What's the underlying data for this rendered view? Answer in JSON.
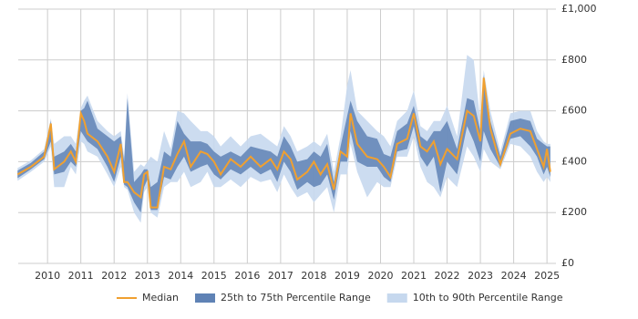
{
  "chart_data": {
    "type": "band-line",
    "x": [
      2009.1,
      2009.5,
      2009.9,
      2010.1,
      2010.2,
      2010.5,
      2010.7,
      2010.85,
      2011.0,
      2011.1,
      2011.2,
      2011.5,
      2011.8,
      2012.0,
      2012.2,
      2012.3,
      2012.4,
      2012.6,
      2012.8,
      2012.9,
      2013.0,
      2013.1,
      2013.3,
      2013.5,
      2013.7,
      2013.9,
      2014.1,
      2014.3,
      2014.6,
      2014.8,
      2015.0,
      2015.2,
      2015.5,
      2015.8,
      2016.1,
      2016.4,
      2016.7,
      2016.9,
      2017.1,
      2017.3,
      2017.5,
      2017.8,
      2018.0,
      2018.2,
      2018.4,
      2018.6,
      2018.8,
      2019.0,
      2019.1,
      2019.3,
      2019.6,
      2019.9,
      2020.1,
      2020.3,
      2020.5,
      2020.8,
      2021.0,
      2021.2,
      2021.4,
      2021.6,
      2021.8,
      2022.0,
      2022.3,
      2022.6,
      2022.8,
      2023.0,
      2023.1,
      2023.3,
      2023.6,
      2023.9,
      2024.2,
      2024.5,
      2024.7,
      2024.9,
      2025.0,
      2025.1
    ],
    "series": [
      {
        "name": "Median",
        "color": "#f0a030",
        "values": [
          350,
          380,
          420,
          550,
          370,
          400,
          440,
          400,
          590,
          560,
          510,
          480,
          420,
          360,
          470,
          320,
          320,
          280,
          260,
          350,
          360,
          220,
          220,
          380,
          370,
          430,
          480,
          380,
          440,
          430,
          400,
          350,
          410,
          380,
          420,
          380,
          410,
          370,
          440,
          410,
          330,
          360,
          400,
          350,
          390,
          290,
          440,
          420,
          590,
          470,
          420,
          410,
          380,
          340,
          470,
          490,
          590,
          460,
          440,
          480,
          390,
          450,
          410,
          600,
          580,
          480,
          730,
          530,
          390,
          510,
          530,
          520,
          450,
          380,
          450,
          360
        ]
      }
    ],
    "bands": [
      {
        "name": "10th to 90th Percentile Range",
        "color": "#c6d8ee",
        "lower": [
          325,
          360,
          400,
          460,
          300,
          300,
          380,
          350,
          480,
          470,
          440,
          420,
          350,
          300,
          380,
          300,
          290,
          200,
          160,
          280,
          300,
          200,
          180,
          300,
          320,
          320,
          360,
          300,
          320,
          360,
          300,
          300,
          330,
          300,
          340,
          320,
          330,
          280,
          350,
          300,
          260,
          280,
          240,
          270,
          300,
          200,
          350,
          350,
          470,
          360,
          260,
          320,
          300,
          300,
          420,
          420,
          500,
          380,
          320,
          300,
          260,
          340,
          300,
          460,
          420,
          360,
          450,
          400,
          370,
          470,
          460,
          420,
          360,
          320,
          340,
          320
        ],
        "upper": [
          375,
          405,
          450,
          570,
          470,
          500,
          500,
          470,
          610,
          640,
          660,
          560,
          520,
          500,
          520,
          420,
          670,
          360,
          390,
          380,
          400,
          420,
          400,
          520,
          450,
          600,
          590,
          560,
          520,
          520,
          500,
          460,
          500,
          460,
          500,
          510,
          480,
          460,
          540,
          500,
          440,
          460,
          480,
          460,
          510,
          360,
          500,
          700,
          760,
          600,
          560,
          520,
          500,
          460,
          560,
          600,
          680,
          540,
          520,
          560,
          560,
          620,
          500,
          820,
          800,
          560,
          760,
          600,
          440,
          590,
          600,
          600,
          520,
          480,
          470,
          470
        ]
      },
      {
        "name": "25th to 75th Percentile Range",
        "color": "#5f82b5",
        "lower": [
          335,
          370,
          410,
          480,
          350,
          360,
          400,
          380,
          520,
          500,
          480,
          450,
          380,
          320,
          420,
          310,
          300,
          240,
          200,
          300,
          330,
          210,
          210,
          340,
          330,
          380,
          420,
          360,
          380,
          390,
          350,
          330,
          370,
          350,
          380,
          350,
          370,
          320,
          400,
          360,
          290,
          320,
          300,
          310,
          350,
          250,
          400,
          400,
          520,
          400,
          380,
          380,
          340,
          320,
          440,
          450,
          540,
          420,
          380,
          420,
          280,
          400,
          350,
          540,
          480,
          400,
          520,
          450,
          380,
          490,
          500,
          460,
          420,
          350,
          380,
          340
        ],
        "upper": [
          365,
          395,
          440,
          560,
          420,
          440,
          470,
          440,
          600,
          610,
          640,
          530,
          500,
          480,
          500,
          400,
          650,
          320,
          350,
          370,
          370,
          300,
          320,
          440,
          420,
          560,
          510,
          480,
          480,
          470,
          440,
          420,
          440,
          420,
          460,
          450,
          440,
          420,
          500,
          460,
          400,
          410,
          440,
          420,
          470,
          320,
          460,
          580,
          640,
          560,
          500,
          490,
          430,
          420,
          520,
          550,
          620,
          500,
          480,
          520,
          520,
          560,
          450,
          650,
          640,
          520,
          740,
          560,
          420,
          560,
          570,
          560,
          490,
          470,
          460,
          460
        ]
      }
    ],
    "legend_order": [
      0
    ],
    "xlim": [
      2009.12,
      2025.27
    ],
    "xticks": [
      2010,
      2011,
      2012,
      2013,
      2014,
      2015,
      2016,
      2017,
      2018,
      2019,
      2020,
      2021,
      2022,
      2023,
      2024,
      2025
    ],
    "ylim": [
      0,
      1000
    ],
    "yticks": [
      {
        "value": 0,
        "label": "£0"
      },
      {
        "value": 200,
        "label": "£200"
      },
      {
        "value": 400,
        "label": "£400"
      },
      {
        "value": 600,
        "label": "£600"
      },
      {
        "value": 800,
        "label": "£800"
      },
      {
        "value": 1000,
        "label": "£1,000"
      }
    ],
    "grid": true
  }
}
